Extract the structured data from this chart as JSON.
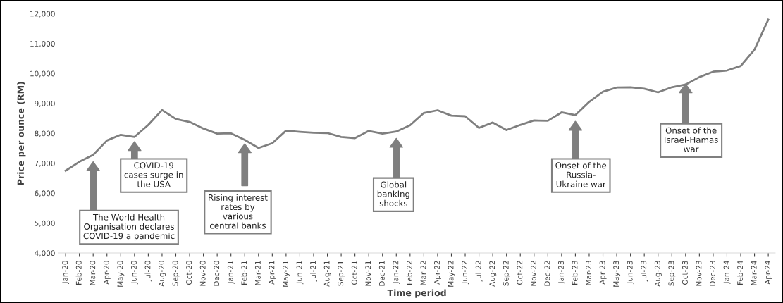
{
  "chart_data": {
    "type": "line",
    "xlabel": "Time period",
    "ylabel": "Price per ounce (RM)",
    "categories": [
      "Jan-20",
      "Feb-20",
      "Mar-20",
      "Apr-20",
      "May-20",
      "Jun-20",
      "Jul-20",
      "Aug-20",
      "Sep-20",
      "Oct-20",
      "Nov-20",
      "Dec-20",
      "Jan-21",
      "Feb-21",
      "Mar-21",
      "Apr-21",
      "May-21",
      "Jun-21",
      "Jul-21",
      "Aug-21",
      "Sep-21",
      "Oct-21",
      "Nov-21",
      "Dec-21",
      "Jan-22",
      "Feb-22",
      "Mar-22",
      "Apr-22",
      "May-22",
      "Jun-22",
      "Jul-22",
      "Aug-22",
      "Sep-22",
      "Oct-22",
      "Nov-22",
      "Dec-22",
      "Jan-23",
      "Feb-23",
      "Mar-23",
      "Apr-23",
      "May-23",
      "Jun-23",
      "Jul-23",
      "Aug-23",
      "Sep-23",
      "Oct-23",
      "Nov-23",
      "Dec-23",
      "Jan-24",
      "Feb-24",
      "Mar-24",
      "Apr-24"
    ],
    "series": [
      {
        "color": "#7f7f7f",
        "values": [
          6750,
          7050,
          7280,
          7760,
          7950,
          7880,
          8280,
          8780,
          8480,
          8380,
          8160,
          7990,
          8000,
          7780,
          7510,
          7670,
          8090,
          8050,
          8020,
          8010,
          7880,
          7840,
          8080,
          7990,
          8060,
          8270,
          8680,
          8770,
          8590,
          8570,
          8180,
          8360,
          8110,
          8280,
          8430,
          8420,
          8700,
          8610,
          9050,
          9390,
          9530,
          9540,
          9490,
          9370,
          9540,
          9630,
          9880,
          10060,
          10100,
          10250,
          10800,
          11800
        ]
      }
    ],
    "ylim": [
      4000,
      12000
    ],
    "yticks": [
      {
        "value": 4000,
        "label": "4,000"
      },
      {
        "value": 5000,
        "label": "5,000"
      },
      {
        "value": 6000,
        "label": "6,000"
      },
      {
        "value": 7000,
        "label": "7,000"
      },
      {
        "value": 8000,
        "label": "8,000"
      },
      {
        "value": 9000,
        "label": "9,000"
      },
      {
        "value": 10000,
        "label": "10,000"
      },
      {
        "value": 11000,
        "label": "11,000"
      },
      {
        "value": 12000,
        "label": "12,000"
      }
    ],
    "grid": false,
    "marker": "none",
    "line_style": "solid",
    "annotations": [
      "The World Health\nOrganisation declares\nCOVID-19 a pandemic",
      "COVID-19\ncases surge in\nthe USA",
      "Rising interest\nrates by\nvarious\ncentral banks",
      "Global\nbanking\nshocks",
      "Onset of the\nRussia-\nUkraine war",
      "Onset of the\nIsrael-Hamas\nwar"
    ]
  }
}
